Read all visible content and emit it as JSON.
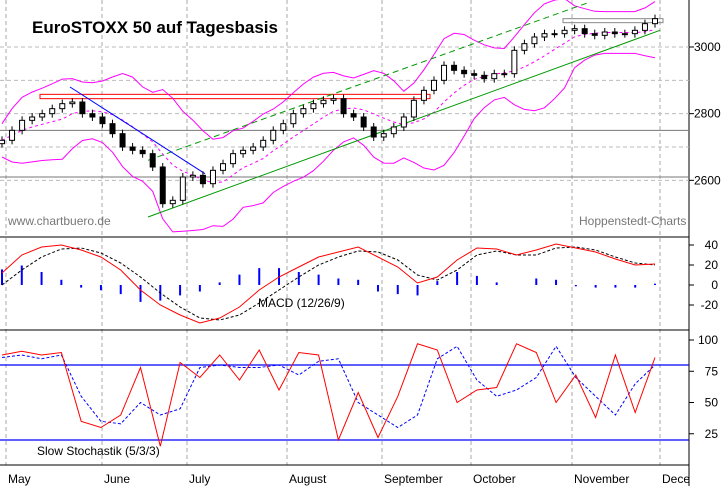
{
  "chart_data": [
    {
      "type": "candlestick",
      "title": "EuroSTOXX 50 auf Tagesbasis",
      "watermark_left": "www.chartbuero.de",
      "watermark_right": "Hoppenstedt-Charts",
      "x_tick_labels": [
        "May",
        "June",
        "July",
        "August",
        "September",
        "October",
        "November",
        "Dece"
      ],
      "y_ticks": [
        2600,
        2800,
        3000
      ],
      "ylim": [
        2430,
        3135
      ],
      "grid": true,
      "closes": [
        2720,
        2750,
        2780,
        2790,
        2800,
        2815,
        2830,
        2835,
        2800,
        2790,
        2770,
        2740,
        2700,
        2690,
        2680,
        2640,
        2530,
        2540,
        2610,
        2615,
        2590,
        2630,
        2650,
        2680,
        2690,
        2700,
        2720,
        2750,
        2770,
        2800,
        2815,
        2830,
        2840,
        2845,
        2800,
        2790,
        2760,
        2730,
        2740,
        2760,
        2790,
        2840,
        2870,
        2900,
        2945,
        2930,
        2920,
        2915,
        2905,
        2920,
        2920,
        2990,
        3010,
        3030,
        3040,
        3040,
        3050,
        3055,
        3040,
        3035,
        3045,
        3040,
        3040,
        3050,
        3070,
        3085
      ],
      "horizontal_lines": [
        2750,
        2610
      ],
      "resistance_zone": [
        2845,
        2858
      ],
      "colors": {
        "bollinger": "#ff00ff",
        "resistance": "#ff0000",
        "trend_up": "#009900",
        "trend_down": "#0000ff",
        "horizontal": "#777777"
      }
    },
    {
      "type": "line",
      "label": "MACD (12/26/9)",
      "y_ticks": [
        -20,
        0,
        20,
        40
      ],
      "ylim": [
        -45,
        48
      ],
      "macd": [
        12,
        30,
        38,
        40,
        35,
        28,
        15,
        -5,
        -20,
        -30,
        -38,
        -33,
        -22,
        -5,
        8,
        18,
        28,
        33,
        38,
        28,
        18,
        2,
        8,
        25,
        37,
        36,
        30,
        35,
        41,
        37,
        33,
        26,
        20,
        21
      ],
      "signal": [
        0,
        15,
        28,
        36,
        37,
        32,
        22,
        8,
        -8,
        -22,
        -33,
        -35,
        -30,
        -18,
        -5,
        8,
        20,
        28,
        34,
        33,
        25,
        10,
        5,
        15,
        30,
        34,
        30,
        30,
        37,
        38,
        35,
        28,
        22,
        20
      ],
      "colors": {
        "macd": "#ff0000",
        "signal": "#000000",
        "histogram": "#0000ff"
      }
    },
    {
      "type": "line",
      "label": "Slow Stochastik (5/3/3)",
      "y_ticks": [
        25,
        50,
        75,
        100
      ],
      "ylim": [
        0,
        108
      ],
      "reference_lines": [
        20,
        80
      ],
      "k": [
        88,
        91,
        88,
        90,
        35,
        30,
        40,
        78,
        15,
        82,
        70,
        88,
        68,
        92,
        60,
        90,
        88,
        20,
        58,
        22,
        55,
        97,
        92,
        50,
        60,
        62,
        97,
        90,
        50,
        72,
        38,
        88,
        42,
        86
      ],
      "d": [
        86,
        88,
        85,
        88,
        55,
        35,
        33,
        50,
        40,
        45,
        78,
        80,
        78,
        78,
        80,
        72,
        83,
        85,
        50,
        40,
        30,
        40,
        85,
        95,
        68,
        55,
        60,
        70,
        95,
        70,
        55,
        40,
        65,
        80
      ],
      "colors": {
        "k": "#ff0000",
        "d": "#0000ff",
        "reference": "#0000ff"
      }
    }
  ]
}
